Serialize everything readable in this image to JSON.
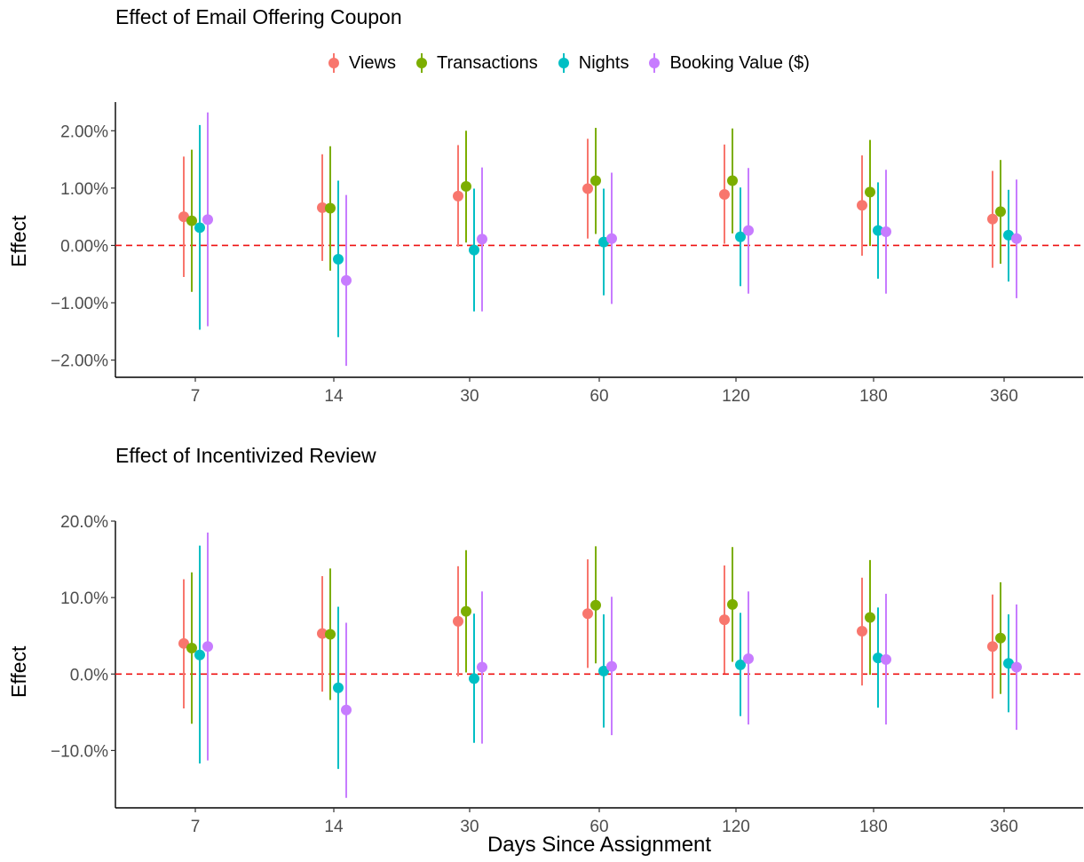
{
  "chart_data": [
    {
      "type": "scatter",
      "subtype": "point-range",
      "title": "Effect of Email Offering Coupon",
      "ylabel": "Effect",
      "xlabel": "",
      "categories": [
        "7",
        "14",
        "30",
        "60",
        "120",
        "180",
        "360"
      ],
      "yticks": [
        -0.02,
        -0.01,
        0.0,
        0.01,
        0.02
      ],
      "ytick_labels": [
        "−2.00%",
        "−1.00%",
        "0.00%",
        "1.00%",
        "2.00%"
      ],
      "ylim": [
        -0.023,
        0.025
      ],
      "reference_line": 0.0,
      "series": [
        {
          "name": "Views",
          "color": "#F8766D",
          "values": [
            0.005,
            0.0066,
            0.0086,
            0.0099,
            0.0089,
            0.007,
            0.0046
          ],
          "lower": [
            -0.0055,
            -0.0027,
            -0.0002,
            0.0012,
            0.0003,
            -0.0018,
            -0.0039
          ],
          "upper": [
            0.0155,
            0.0159,
            0.0175,
            0.0186,
            0.0176,
            0.0157,
            0.013
          ]
        },
        {
          "name": "Transactions",
          "color": "#7CAE00",
          "values": [
            0.0043,
            0.0065,
            0.0103,
            0.0113,
            0.0113,
            0.0093,
            0.0059
          ],
          "lower": [
            -0.0081,
            -0.0044,
            0.0005,
            0.002,
            0.0021,
            -0.0001,
            -0.0032
          ],
          "upper": [
            0.0167,
            0.0173,
            0.02,
            0.0205,
            0.0204,
            0.0184,
            0.0149
          ]
        },
        {
          "name": "Nights",
          "color": "#00BFC4",
          "values": [
            0.0031,
            -0.0024,
            -0.0008,
            0.0006,
            0.0015,
            0.0026,
            0.0018
          ],
          "lower": [
            -0.0147,
            -0.016,
            -0.0115,
            -0.0087,
            -0.0071,
            -0.0058,
            -0.0063
          ],
          "upper": [
            0.021,
            0.0113,
            0.0099,
            0.0099,
            0.0101,
            0.011,
            0.0097
          ]
        },
        {
          "name": "Booking Value ($)",
          "color": "#C77CFF",
          "values": [
            0.0045,
            -0.0061,
            0.0011,
            0.0012,
            0.0026,
            0.0024,
            0.0012
          ],
          "lower": [
            -0.0141,
            -0.021,
            -0.0115,
            -0.0102,
            -0.0084,
            -0.0084,
            -0.0092
          ],
          "upper": [
            0.0232,
            0.0088,
            0.0136,
            0.0127,
            0.0135,
            0.0132,
            0.0115
          ]
        }
      ]
    },
    {
      "type": "scatter",
      "subtype": "point-range",
      "title": "Effect of Incentivized Review",
      "ylabel": "Effect",
      "xlabel": "Days Since Assignment",
      "categories": [
        "7",
        "14",
        "30",
        "60",
        "120",
        "180",
        "360"
      ],
      "yticks": [
        -0.1,
        0.0,
        0.1,
        0.2
      ],
      "ytick_labels": [
        "−10.0%",
        "0.0%",
        "10.0%",
        "20.0%"
      ],
      "ylim": [
        -0.175,
        0.2
      ],
      "reference_line": 0.0,
      "series": [
        {
          "name": "Views",
          "color": "#F8766D",
          "values": [
            0.04,
            0.053,
            0.069,
            0.079,
            0.071,
            0.056,
            0.036
          ],
          "lower": [
            -0.045,
            -0.023,
            -0.003,
            0.008,
            0.001,
            -0.015,
            -0.032
          ],
          "upper": [
            0.124,
            0.128,
            0.141,
            0.15,
            0.142,
            0.126,
            0.104
          ]
        },
        {
          "name": "Transactions",
          "color": "#7CAE00",
          "values": [
            0.034,
            0.052,
            0.082,
            0.09,
            0.091,
            0.074,
            0.047
          ],
          "lower": [
            -0.065,
            -0.034,
            0.002,
            0.014,
            0.016,
            -0.001,
            -0.026
          ],
          "upper": [
            0.133,
            0.138,
            0.162,
            0.167,
            0.166,
            0.149,
            0.12
          ]
        },
        {
          "name": "Nights",
          "color": "#00BFC4",
          "values": [
            0.025,
            -0.018,
            -0.006,
            0.004,
            0.012,
            0.021,
            0.014
          ],
          "lower": [
            -0.117,
            -0.124,
            -0.09,
            -0.07,
            -0.055,
            -0.044,
            -0.05
          ],
          "upper": [
            0.168,
            0.088,
            0.079,
            0.078,
            0.08,
            0.087,
            0.078
          ]
        },
        {
          "name": "Booking Value ($)",
          "color": "#C77CFF",
          "values": [
            0.036,
            -0.047,
            0.009,
            0.01,
            0.02,
            0.019,
            0.009
          ],
          "lower": [
            -0.113,
            -0.162,
            -0.091,
            -0.08,
            -0.066,
            -0.066,
            -0.073
          ],
          "upper": [
            0.185,
            0.067,
            0.108,
            0.101,
            0.108,
            0.105,
            0.091
          ]
        }
      ]
    }
  ]
}
